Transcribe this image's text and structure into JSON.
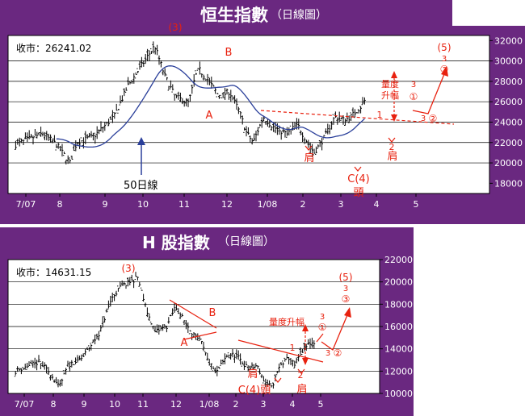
{
  "charts": [
    {
      "title": "恒生指數",
      "subtitle": "（日線圖）",
      "close_label": "收市：26241.02",
      "ma_label": "50日線",
      "y_ticks": [
        32000,
        30000,
        28000,
        26000,
        24000,
        22000,
        20000,
        18000
      ],
      "y_tick_labels": [
        "32000",
        "30000",
        "28000",
        "26000",
        "24000",
        "22000",
        "20000",
        "18000"
      ],
      "x_tick_labels": [
        "7/07",
        "8",
        "9",
        "10",
        "11",
        "12",
        "1/08",
        "2",
        "3",
        "4",
        "5"
      ],
      "annotations": {
        "wave3": "(3)",
        "A": "A",
        "B": "B",
        "shoulder_left": "肩",
        "shoulder_right": "肩",
        "head_c4": "C(4)",
        "head": "頭",
        "wave5": "(5)",
        "measure_rise": "量度升幅",
        "w1": "1",
        "w2": "2",
        "w3": "3",
        "circ1": "①",
        "circ2": "②",
        "circ3": "③",
        "small3a": "3",
        "small3b": "3",
        "small3c": "3"
      }
    },
    {
      "title": "H 股指數",
      "subtitle": "（日線圖）",
      "close_label": "收市：14631.15",
      "y_ticks": [
        22000,
        20000,
        18000,
        16000,
        14000,
        12000,
        10000
      ],
      "y_tick_labels": [
        "22000",
        "20000",
        "18000",
        "16000",
        "14000",
        "12000",
        "10000"
      ],
      "x_tick_labels": [
        "7/07",
        "8",
        "9",
        "10",
        "11",
        "12",
        "1/08",
        "2",
        "3",
        "4",
        "5"
      ],
      "annotations": {
        "wave3": "(3)",
        "A": "A",
        "B": "B",
        "shoulder_left": "肩",
        "shoulder_right": "肩",
        "head": "C(4)頭",
        "wave5": "(5)",
        "measure_rise": "量度升幅",
        "w1": "1",
        "w2": "2",
        "w3": "3",
        "circ1": "①",
        "circ2": "②",
        "circ3": "③",
        "small3a": "3",
        "small3b": "3",
        "small3c": "3"
      }
    }
  ],
  "chart_data": [
    {
      "type": "line",
      "title": "恒生指數",
      "series": [
        {
          "values_approx": [
            {
              "x": "7/07",
              "y": 22000
            },
            {
              "x": "8",
              "y": 21800
            },
            {
              "x": "8",
              "y": 19800
            },
            {
              "x": "9",
              "y": 22500
            },
            {
              "x": "10",
              "y": 28000
            },
            {
              "x": "10",
              "y": 31500
            },
            {
              "x": "11",
              "y": 27200
            },
            {
              "x": "11",
              "y": 26000
            },
            {
              "x": "12",
              "y": 29200
            },
            {
              "x": "12",
              "y": 27000
            },
            {
              "x": "1/08",
              "y": 27000
            },
            {
              "x": "1/08",
              "y": 22000
            },
            {
              "x": "2",
              "y": 24500
            },
            {
              "x": "3",
              "y": 22500
            },
            {
              "x": "3",
              "y": 21000
            },
            {
              "x": "4",
              "y": 24500
            },
            {
              "x": "4",
              "y": 24000
            },
            {
              "x": "5",
              "y": 26241
            }
          ]
        }
      ],
      "ylim": [
        18000,
        32000
      ],
      "close": 26241.02
    },
    {
      "type": "line",
      "title": "H 股指數",
      "series": [
        {
          "values_approx": [
            {
              "x": "7/07",
              "y": 12200
            },
            {
              "x": "8",
              "y": 11800
            },
            {
              "x": "8",
              "y": 10500
            },
            {
              "x": "9",
              "y": 13000
            },
            {
              "x": "10",
              "y": 18000
            },
            {
              "x": "10",
              "y": 20300
            },
            {
              "x": "11",
              "y": 16000
            },
            {
              "x": "11",
              "y": 15200
            },
            {
              "x": "12",
              "y": 17800
            },
            {
              "x": "12",
              "y": 15200
            },
            {
              "x": "1/08",
              "y": 14000
            },
            {
              "x": "1/08",
              "y": 11800
            },
            {
              "x": "2",
              "y": 13800
            },
            {
              "x": "3",
              "y": 12000
            },
            {
              "x": "3",
              "y": 10600
            },
            {
              "x": "4",
              "y": 13500
            },
            {
              "x": "4",
              "y": 12500
            },
            {
              "x": "5",
              "y": 14631
            }
          ]
        }
      ],
      "ylim": [
        10000,
        22000
      ],
      "close": 14631.15
    }
  ]
}
